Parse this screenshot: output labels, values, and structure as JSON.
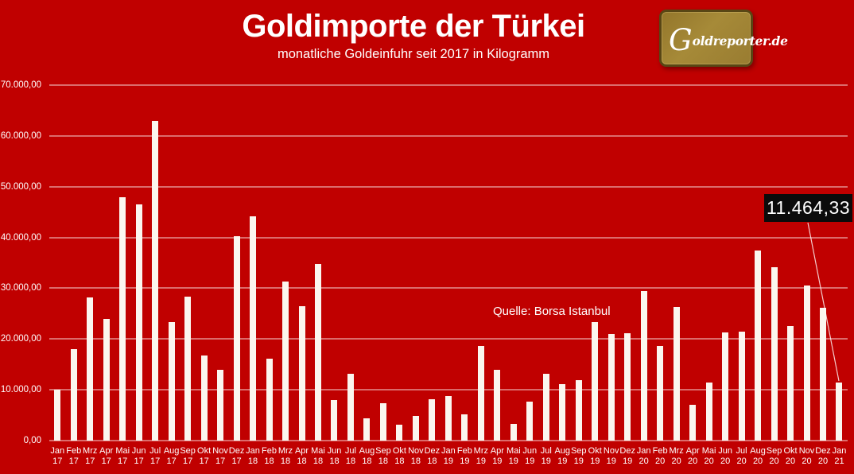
{
  "header": {
    "title": "Goldimporte der Türkei",
    "subtitle": "monatliche Goldeinfuhr seit 2017 in Kilogramm",
    "logo_initial": "G",
    "logo_rest": "oldreporter.de"
  },
  "source_note": "Quelle: Borsa Istanbul",
  "colors": {
    "background": "#C00000",
    "bar": "#FBF6EF",
    "gridline": "rgba(255,255,255,0.85)",
    "annotation_bg": "#0B0B0B",
    "text": "#FFFFFF",
    "logo_gold": "#9A7D32",
    "logo_border": "#584614"
  },
  "chart_data": {
    "type": "bar",
    "title": "Goldimporte der Türkei",
    "subtitle": "monatliche Goldeinfuhr seit 2017 in Kilogramm",
    "xlabel": "",
    "ylabel": "Kilogramm",
    "ylim": [
      0,
      70000
    ],
    "grid": true,
    "legend": false,
    "y_ticks": [
      {
        "value": 0,
        "label": "0,00"
      },
      {
        "value": 10000,
        "label": "10.000,00"
      },
      {
        "value": 20000,
        "label": "20.000,00"
      },
      {
        "value": 30000,
        "label": "30.000,00"
      },
      {
        "value": 40000,
        "label": "40.000,00"
      },
      {
        "value": 50000,
        "label": "50.000,00"
      },
      {
        "value": 60000,
        "label": "60.000,00"
      },
      {
        "value": 70000,
        "label": "70.000,00"
      }
    ],
    "categories": [
      "Jan 17",
      "Feb 17",
      "Mrz 17",
      "Apr 17",
      "Mai 17",
      "Jun 17",
      "Jul 17",
      "Aug 17",
      "Sep 17",
      "Okt 17",
      "Nov 17",
      "Dez 17",
      "Jan 18",
      "Feb 18",
      "Mrz 18",
      "Apr 18",
      "Mai 18",
      "Jun 18",
      "Jul 18",
      "Aug 18",
      "Sep 18",
      "Okt 18",
      "Nov 18",
      "Dez 18",
      "Jan 19",
      "Feb 19",
      "Mrz 19",
      "Apr 19",
      "Mai 19",
      "Jun 19",
      "Jul 19",
      "Aug 19",
      "Sep 19",
      "Okt 19",
      "Nov 19",
      "Dez 19",
      "Jan 20",
      "Feb 20",
      "Mrz 20",
      "Apr 20",
      "Mai 20",
      "Jun 20",
      "Jul 20",
      "Aug 20",
      "Sep 20",
      "Okt 20",
      "Nov 20",
      "Dez 20",
      "Jan 21"
    ],
    "values": [
      10000,
      18000,
      28200,
      23900,
      47900,
      46500,
      62900,
      23400,
      28300,
      16800,
      14000,
      40200,
      44200,
      16200,
      31300,
      26400,
      34800,
      8000,
      13100,
      4400,
      7300,
      3200,
      4900,
      8200,
      8700,
      5200,
      18600,
      14000,
      3300,
      7700,
      13200,
      11100,
      11900,
      23300,
      21000,
      21200,
      29500,
      18600,
      26300,
      7100,
      11500,
      21300,
      21500,
      37400,
      34100,
      22600,
      30600,
      26100,
      11464.33
    ],
    "annotation": {
      "text": "11.464,33",
      "category": "Jan 21",
      "value": 11464.33
    },
    "source": "Quelle: Borsa Istanbul"
  }
}
